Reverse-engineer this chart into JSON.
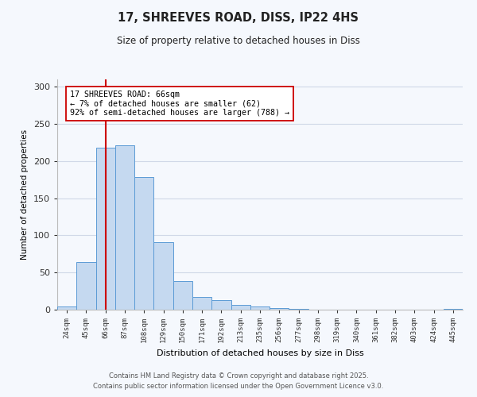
{
  "title": "17, SHREEVES ROAD, DISS, IP22 4HS",
  "subtitle": "Size of property relative to detached houses in Diss",
  "xlabel": "Distribution of detached houses by size in Diss",
  "ylabel": "Number of detached properties",
  "bar_labels": [
    "24sqm",
    "45sqm",
    "66sqm",
    "87sqm",
    "108sqm",
    "129sqm",
    "150sqm",
    "171sqm",
    "192sqm",
    "213sqm",
    "235sqm",
    "256sqm",
    "277sqm",
    "298sqm",
    "319sqm",
    "340sqm",
    "361sqm",
    "382sqm",
    "403sqm",
    "424sqm",
    "445sqm"
  ],
  "bar_values": [
    4,
    64,
    218,
    221,
    179,
    91,
    39,
    17,
    13,
    6,
    4,
    2,
    1,
    0,
    0,
    0,
    0,
    0,
    0,
    0,
    1
  ],
  "bar_color": "#c5d9f0",
  "bar_edge_color": "#5b9bd5",
  "vline_x_index": 2,
  "vline_color": "#cc0000",
  "annotation_title": "17 SHREEVES ROAD: 66sqm",
  "annotation_line1": "← 7% of detached houses are smaller (62)",
  "annotation_line2": "92% of semi-detached houses are larger (788) →",
  "annotation_box_color": "#ffffff",
  "annotation_box_edge": "#cc0000",
  "ylim": [
    0,
    310
  ],
  "yticks": [
    0,
    50,
    100,
    150,
    200,
    250,
    300
  ],
  "footer1": "Contains HM Land Registry data © Crown copyright and database right 2025.",
  "footer2": "Contains public sector information licensed under the Open Government Licence v3.0.",
  "bg_color": "#f5f8fd",
  "grid_color": "#d0d8e8"
}
